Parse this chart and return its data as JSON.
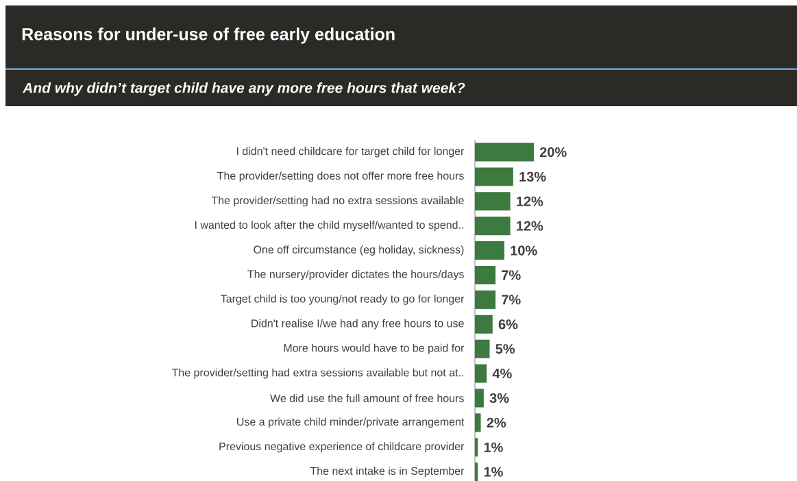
{
  "chart_data": {
    "type": "bar",
    "orientation": "horizontal",
    "title": "Reasons for under-use of free early education",
    "subtitle": "And why didn’t target child have any more free hours that week?",
    "categories": [
      "I didn't need childcare for target child for longer",
      "The provider/setting does not offer more free hours",
      "The provider/setting had no extra sessions available",
      "I wanted to look after the child myself/wanted to spend..",
      "One off circumstance (eg holiday, sickness)",
      "The nursery/provider dictates the hours/days",
      "Target child is too young/not ready to go for longer",
      "Didn't realise I/we had any free hours to use",
      "More hours would have to be paid for",
      "The provider/setting had extra sessions available but not at..",
      "We did use the full amount of free hours",
      "Use a private child minder/private arrangement",
      "Previous negative experience of childcare provider",
      "The next intake is in September"
    ],
    "values": [
      20,
      13,
      12,
      12,
      10,
      7,
      7,
      6,
      5,
      4,
      3,
      2,
      1,
      1
    ],
    "value_labels": [
      "20%",
      "13%",
      "12%",
      "12%",
      "10%",
      "7%",
      "7%",
      "6%",
      "5%",
      "4%",
      "3%",
      "2%",
      "1%",
      "1%"
    ],
    "color": "#3d7a3f"
  }
}
